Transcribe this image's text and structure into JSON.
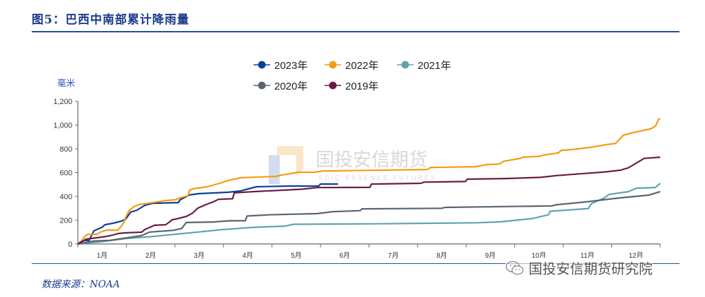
{
  "header": {
    "title": "图5：巴西中南部累计降雨量"
  },
  "footer": {
    "source": "数据来源：NOAA",
    "brand": "国投安信期货研究院"
  },
  "watermark": {
    "cn": "国投安信期货",
    "en": "SDIC ESSENCE FUTURES"
  },
  "chart_data": {
    "type": "line",
    "title": "",
    "ylabel": "毫米",
    "xlabel": "",
    "ylim": [
      0,
      1200
    ],
    "yticks": [
      0,
      200,
      400,
      600,
      800,
      1000,
      1200
    ],
    "ytick_labels": [
      "0",
      "200",
      "400",
      "600",
      "800",
      "1,000",
      "1,200"
    ],
    "x_unit": "day of year",
    "xlim": [
      0,
      365
    ],
    "categories": [
      "1月",
      "2月",
      "3月",
      "4月",
      "5月",
      "6月",
      "7月",
      "8月",
      "9月",
      "10月",
      "11月",
      "12月"
    ],
    "grid": false,
    "legend": "top",
    "series": [
      {
        "name": "2023年",
        "color": "#0a3f99",
        "points": [
          [
            0,
            0
          ],
          [
            4,
            29
          ],
          [
            7,
            29
          ],
          [
            10,
            110
          ],
          [
            15,
            139
          ],
          [
            17,
            162
          ],
          [
            22,
            174
          ],
          [
            27,
            191
          ],
          [
            30,
            209
          ],
          [
            33,
            267
          ],
          [
            37,
            284
          ],
          [
            42,
            325
          ],
          [
            47,
            342
          ],
          [
            63,
            348
          ],
          [
            64,
            371
          ],
          [
            70,
            412
          ],
          [
            76,
            423
          ],
          [
            94,
            435
          ],
          [
            102,
            446
          ],
          [
            107,
            464
          ],
          [
            112,
            481
          ],
          [
            133,
            487
          ],
          [
            151,
            487
          ],
          [
            152,
            504
          ],
          [
            163,
            504
          ]
        ]
      },
      {
        "name": "2022年",
        "color": "#f39c12",
        "points": [
          [
            0,
            0
          ],
          [
            2,
            23
          ],
          [
            4,
            58
          ],
          [
            6,
            81
          ],
          [
            12,
            81
          ],
          [
            14,
            99
          ],
          [
            18,
            116
          ],
          [
            25,
            116
          ],
          [
            27,
            145
          ],
          [
            29,
            186
          ],
          [
            30,
            226
          ],
          [
            32,
            278
          ],
          [
            35,
            313
          ],
          [
            38,
            330
          ],
          [
            44,
            342
          ],
          [
            55,
            365
          ],
          [
            61,
            371
          ],
          [
            64,
            388
          ],
          [
            69,
            406
          ],
          [
            70,
            452
          ],
          [
            72,
            464
          ],
          [
            81,
            481
          ],
          [
            89,
            510
          ],
          [
            94,
            533
          ],
          [
            102,
            557
          ],
          [
            124,
            568
          ],
          [
            128,
            580
          ],
          [
            138,
            603
          ],
          [
            148,
            603
          ],
          [
            154,
            614
          ],
          [
            219,
            626
          ],
          [
            221,
            643
          ],
          [
            249,
            649
          ],
          [
            256,
            667
          ],
          [
            264,
            672
          ],
          [
            267,
            696
          ],
          [
            277,
            719
          ],
          [
            279,
            730
          ],
          [
            289,
            736
          ],
          [
            292,
            748
          ],
          [
            301,
            765
          ],
          [
            303,
            788
          ],
          [
            310,
            794
          ],
          [
            321,
            812
          ],
          [
            331,
            835
          ],
          [
            337,
            846
          ],
          [
            340,
            887
          ],
          [
            342,
            916
          ],
          [
            349,
            939
          ],
          [
            359,
            968
          ],
          [
            362,
            991
          ],
          [
            364,
            1049
          ],
          [
            365,
            1055
          ]
        ]
      },
      {
        "name": "2021年",
        "color": "#5fa3ab",
        "points": [
          [
            0,
            0
          ],
          [
            15,
            20
          ],
          [
            30,
            45
          ],
          [
            45,
            60
          ],
          [
            60,
            80
          ],
          [
            75,
            100
          ],
          [
            90,
            120
          ],
          [
            110,
            140
          ],
          [
            130,
            150
          ],
          [
            135,
            165
          ],
          [
            190,
            170
          ],
          [
            250,
            178
          ],
          [
            265,
            186
          ],
          [
            275,
            200
          ],
          [
            285,
            214
          ],
          [
            295,
            245
          ],
          [
            296,
            275
          ],
          [
            320,
            298
          ],
          [
            322,
            340
          ],
          [
            330,
            388
          ],
          [
            333,
            417
          ],
          [
            345,
            440
          ],
          [
            350,
            469
          ],
          [
            362,
            475
          ],
          [
            365,
            510
          ]
        ]
      },
      {
        "name": "2020年",
        "color": "#566470",
        "points": [
          [
            0,
            0
          ],
          [
            10,
            25
          ],
          [
            20,
            30
          ],
          [
            30,
            50
          ],
          [
            40,
            70
          ],
          [
            45,
            100
          ],
          [
            60,
            115
          ],
          [
            65,
            130
          ],
          [
            68,
            180
          ],
          [
            85,
            185
          ],
          [
            95,
            195
          ],
          [
            105,
            195
          ],
          [
            106,
            235
          ],
          [
            120,
            245
          ],
          [
            150,
            255
          ],
          [
            160,
            272
          ],
          [
            177,
            280
          ],
          [
            178,
            295
          ],
          [
            228,
            300
          ],
          [
            230,
            307
          ],
          [
            297,
            320
          ],
          [
            300,
            330
          ],
          [
            318,
            353
          ],
          [
            340,
            388
          ],
          [
            358,
            411
          ],
          [
            365,
            440
          ]
        ]
      },
      {
        "name": "2019年",
        "color": "#6b1a44",
        "points": [
          [
            0,
            0
          ],
          [
            3,
            23
          ],
          [
            5,
            40
          ],
          [
            12,
            52
          ],
          [
            18,
            64
          ],
          [
            22,
            75
          ],
          [
            25,
            87
          ],
          [
            29,
            93
          ],
          [
            40,
            99
          ],
          [
            42,
            122
          ],
          [
            45,
            139
          ],
          [
            48,
            157
          ],
          [
            55,
            162
          ],
          [
            57,
            180
          ],
          [
            59,
            203
          ],
          [
            63,
            214
          ],
          [
            68,
            232
          ],
          [
            72,
            260
          ],
          [
            75,
            300
          ],
          [
            80,
            330
          ],
          [
            85,
            355
          ],
          [
            88,
            375
          ],
          [
            97,
            380
          ],
          [
            98,
            430
          ],
          [
            110,
            440
          ],
          [
            125,
            450
          ],
          [
            140,
            460
          ],
          [
            150,
            474
          ],
          [
            183,
            476
          ],
          [
            184,
            504
          ],
          [
            215,
            510
          ],
          [
            217,
            520
          ],
          [
            243,
            525
          ],
          [
            244,
            545
          ],
          [
            268,
            550
          ],
          [
            290,
            560
          ],
          [
            300,
            575
          ],
          [
            315,
            590
          ],
          [
            330,
            605
          ],
          [
            340,
            620
          ],
          [
            345,
            640
          ],
          [
            350,
            680
          ],
          [
            355,
            720
          ],
          [
            365,
            730
          ]
        ]
      }
    ]
  }
}
